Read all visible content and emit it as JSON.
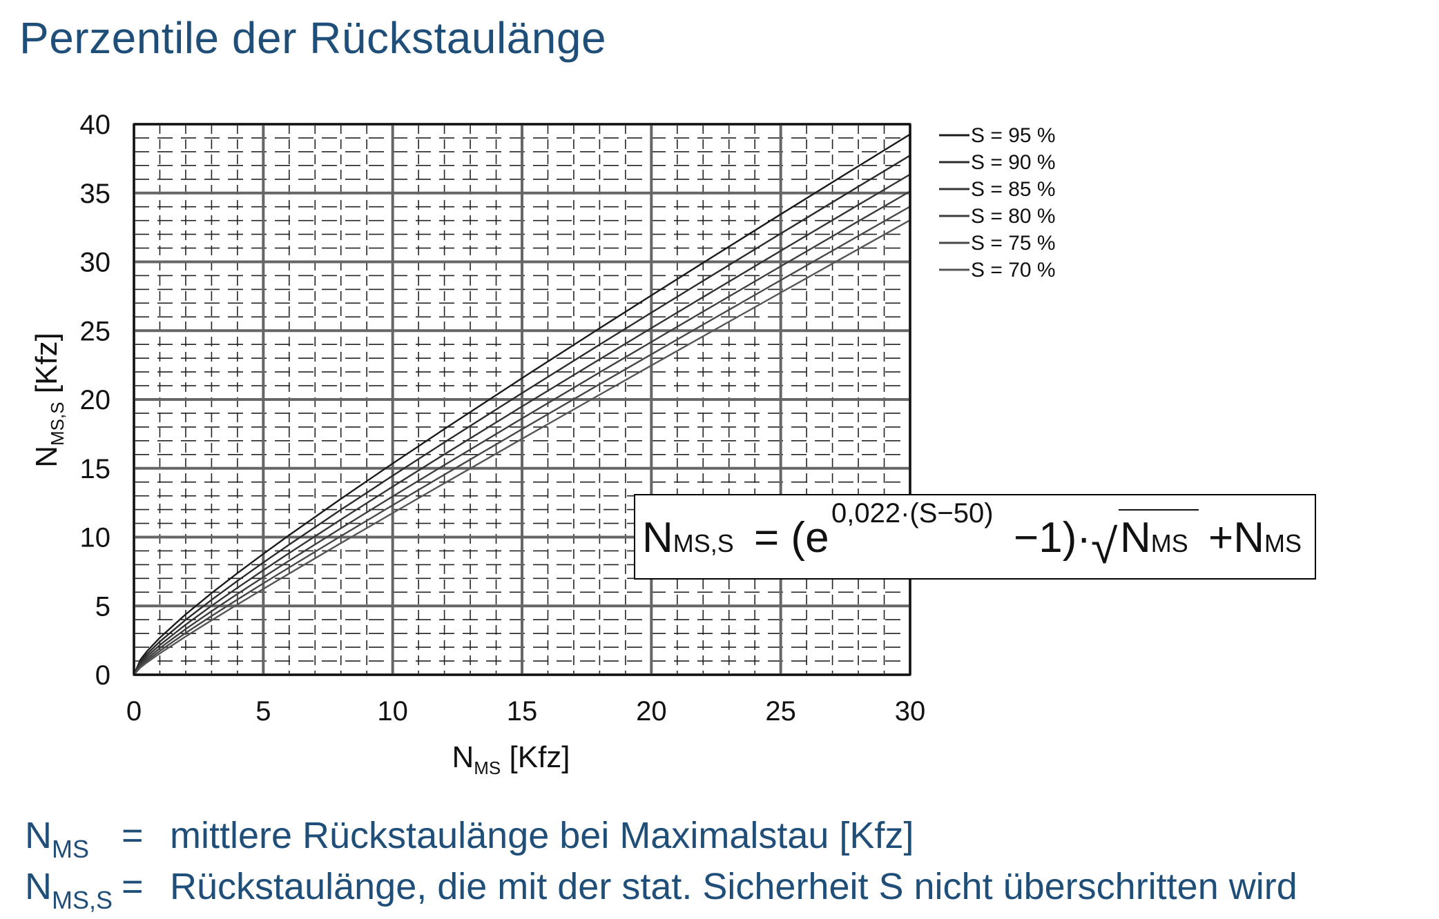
{
  "title": "Perzentile der Rückstaulänge",
  "chart_data": {
    "type": "line",
    "xlabel": {
      "main": "N",
      "sub": "MS",
      "unit": " [Kfz]"
    },
    "ylabel": {
      "main": "N",
      "sub": "MS,S",
      "unit": " [Kfz]"
    },
    "xlim": [
      0,
      30
    ],
    "ylim": [
      0,
      40
    ],
    "xticks": [
      0,
      5,
      10,
      15,
      20,
      25,
      30
    ],
    "yticks": [
      0,
      5,
      10,
      15,
      20,
      25,
      30,
      35,
      40
    ],
    "grid": true,
    "legend_position": "right",
    "x": [
      0,
      0.25,
      0.5,
      1,
      2,
      3,
      4,
      5,
      6,
      8,
      10,
      12,
      15,
      18,
      20,
      22,
      25,
      28,
      30
    ],
    "series": [
      {
        "name": "S = 95 %",
        "S": 95,
        "color": "#1a1a1a"
      },
      {
        "name": "S = 90 %",
        "S": 90,
        "color": "#2a2a2a"
      },
      {
        "name": "S = 85 %",
        "S": 85,
        "color": "#333333"
      },
      {
        "name": "S = 80 %",
        "S": 80,
        "color": "#3d3d3d"
      },
      {
        "name": "S = 75 %",
        "S": 75,
        "color": "#474747"
      },
      {
        "name": "S = 70 %",
        "S": 70,
        "color": "#555555"
      }
    ],
    "formula": {
      "lhs": "N",
      "lhs_sub": "MS,S",
      "eq": "= (e",
      "exponent": "0,022·(S−50)",
      "mid": "−1)·",
      "sqrt_arg": "N",
      "sqrt_sub": "MS",
      "plus": "+N",
      "plus_sub": "MS"
    }
  },
  "definitions": [
    {
      "symbol": "N",
      "sub": "MS",
      "eq": "=",
      "text": "mittlere Rückstaulänge bei Maximalstau [Kfz]"
    },
    {
      "symbol": "N",
      "sub": "MS,S",
      "eq": "=",
      "text": "Rückstaulänge, die mit der stat. Sicherheit S nicht überschritten wird"
    }
  ]
}
